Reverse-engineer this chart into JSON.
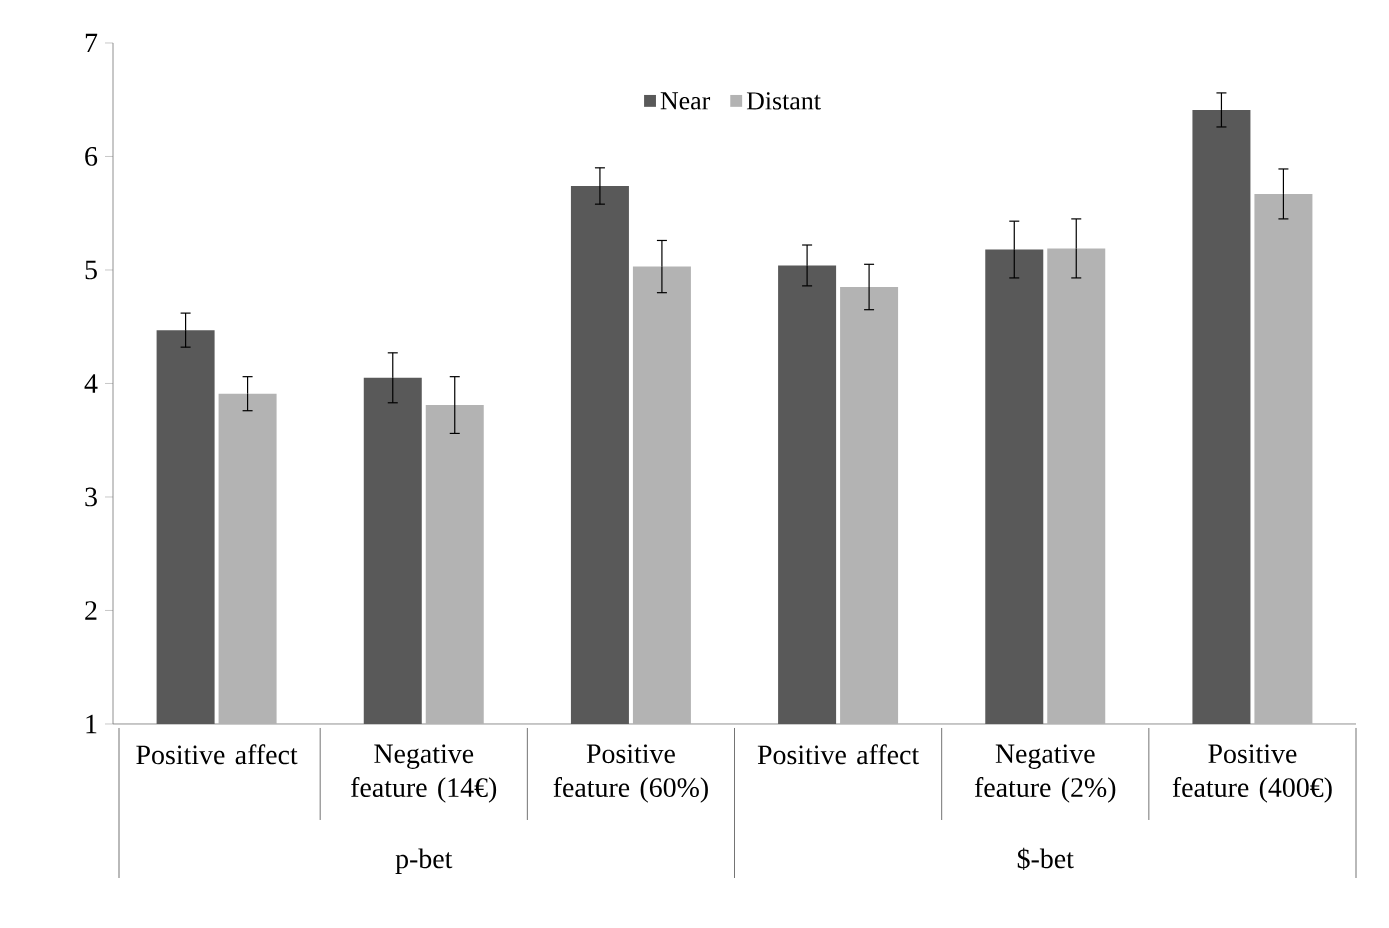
{
  "chart_data": {
    "type": "bar",
    "categories": [
      "Positive affect",
      "Negative feature (14€)",
      "Positive feature (60%)",
      "Positive affect",
      "Negative feature (2%)",
      "Positive feature (400€)"
    ],
    "series": [
      {
        "name": "Near",
        "color": "#595959",
        "values": [
          4.47,
          4.05,
          5.74,
          5.04,
          5.18,
          6.41
        ],
        "errors": [
          0.15,
          0.22,
          0.16,
          0.18,
          0.25,
          0.15
        ]
      },
      {
        "name": "Distant",
        "color": "#b3b3b3",
        "values": [
          3.91,
          3.81,
          5.03,
          4.85,
          5.19,
          5.67
        ],
        "errors": [
          0.15,
          0.25,
          0.23,
          0.2,
          0.26,
          0.22
        ]
      }
    ],
    "annotations": [
      "p-bet",
      "$-bet"
    ],
    "ylim": [
      1,
      7
    ],
    "yticks": [
      1,
      2,
      3,
      4,
      5,
      6,
      7
    ],
    "legend": "top"
  }
}
